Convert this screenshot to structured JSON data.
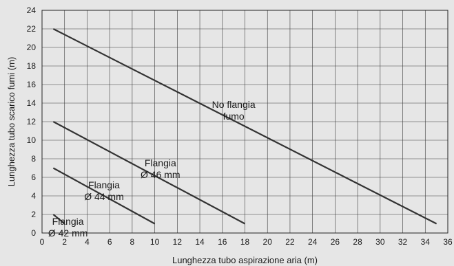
{
  "chart_data": {
    "type": "line",
    "xlabel": "Lunghezza tubo aspirazione aria (m)",
    "ylabel": "Lunghezza tubo scarico fumi (m)",
    "xlim": [
      0,
      36
    ],
    "ylim": [
      0,
      24
    ],
    "x_ticks": [
      0,
      2,
      4,
      6,
      8,
      10,
      12,
      14,
      16,
      18,
      20,
      22,
      24,
      26,
      28,
      30,
      32,
      34,
      36
    ],
    "y_ticks": [
      0,
      2,
      4,
      6,
      8,
      10,
      12,
      14,
      16,
      18,
      20,
      22,
      24
    ],
    "grid": true,
    "series": [
      {
        "name": "No flangia fumo",
        "label_lines": [
          "No flangia",
          "fumo"
        ],
        "x": [
          1,
          35
        ],
        "y": [
          22,
          1
        ]
      },
      {
        "name": "Flangia Ø 46 mm",
        "label_lines": [
          "Flangia",
          "Ø 46 mm"
        ],
        "x": [
          1,
          18
        ],
        "y": [
          12,
          1
        ]
      },
      {
        "name": "Flangia Ø 44 mm",
        "label_lines": [
          "Flangia",
          "Ø 44 mm"
        ],
        "x": [
          1,
          10
        ],
        "y": [
          7,
          1
        ]
      },
      {
        "name": "Flangia Ø 42 mm",
        "label_lines": [
          "Flangia",
          "Ø 42 mm"
        ],
        "x": [
          1,
          2
        ],
        "y": [
          2,
          1
        ]
      }
    ],
    "label_anchors": [
      {
        "x": 17,
        "y": 13.5
      },
      {
        "x": 10.5,
        "y": 7.2
      },
      {
        "x": 5.5,
        "y": 4.8
      },
      {
        "x": 2.3,
        "y": 0.9
      }
    ]
  }
}
